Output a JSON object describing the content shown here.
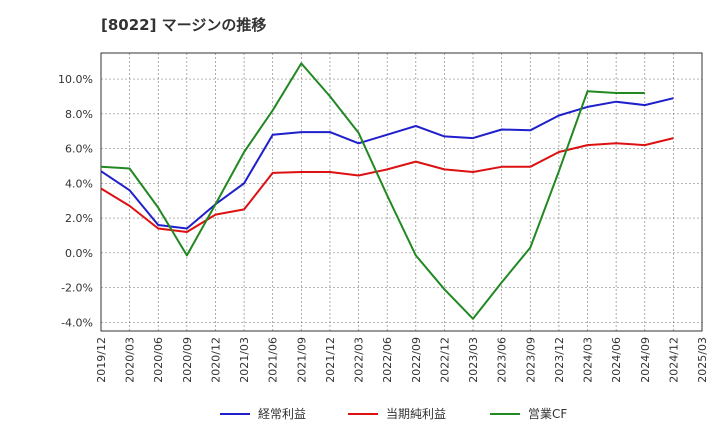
{
  "chart_data": {
    "type": "line",
    "title": "[8022]  マージンの推移",
    "xlabel": "",
    "ylabel": "",
    "categories": [
      "2019/12",
      "2020/03",
      "2020/06",
      "2020/09",
      "2020/12",
      "2021/03",
      "2021/06",
      "2021/09",
      "2021/12",
      "2022/03",
      "2022/06",
      "2022/09",
      "2022/12",
      "2023/03",
      "2023/06",
      "2023/09",
      "2023/12",
      "2024/03",
      "2024/06",
      "2024/09",
      "2024/12",
      "2025/03"
    ],
    "ylim": [
      -4.5,
      11.5
    ],
    "yticks": [
      -4,
      -2,
      0,
      2,
      4,
      6,
      8,
      10
    ],
    "ytick_labels": [
      "-4.0%",
      "-2.0%",
      "0.0%",
      "2.0%",
      "4.0%",
      "6.0%",
      "8.0%",
      "10.0%"
    ],
    "grid": true,
    "legend_position": "bottom",
    "series": [
      {
        "name": "経常利益",
        "color": "#1f1fcc",
        "values": [
          4.7,
          3.6,
          1.6,
          1.4,
          2.8,
          4.0,
          6.8,
          6.95,
          6.95,
          6.3,
          6.8,
          7.3,
          6.7,
          6.6,
          7.1,
          7.05,
          7.9,
          8.4,
          8.7,
          8.5,
          8.9,
          null
        ]
      },
      {
        "name": "当期純利益",
        "color": "#dd1111",
        "values": [
          3.7,
          2.7,
          1.4,
          1.2,
          2.2,
          2.5,
          4.6,
          4.65,
          4.65,
          4.45,
          4.8,
          5.25,
          4.8,
          4.65,
          4.95,
          4.95,
          5.8,
          6.2,
          6.3,
          6.2,
          6.6,
          null
        ]
      },
      {
        "name": "営業CF",
        "color": "#228822",
        "values": [
          4.95,
          4.85,
          2.6,
          -0.15,
          2.8,
          5.8,
          8.2,
          10.9,
          9.0,
          6.9,
          3.3,
          -0.15,
          -2.1,
          -3.8,
          -1.7,
          0.3,
          4.7,
          9.3,
          9.2,
          9.2,
          null,
          null
        ]
      }
    ]
  }
}
